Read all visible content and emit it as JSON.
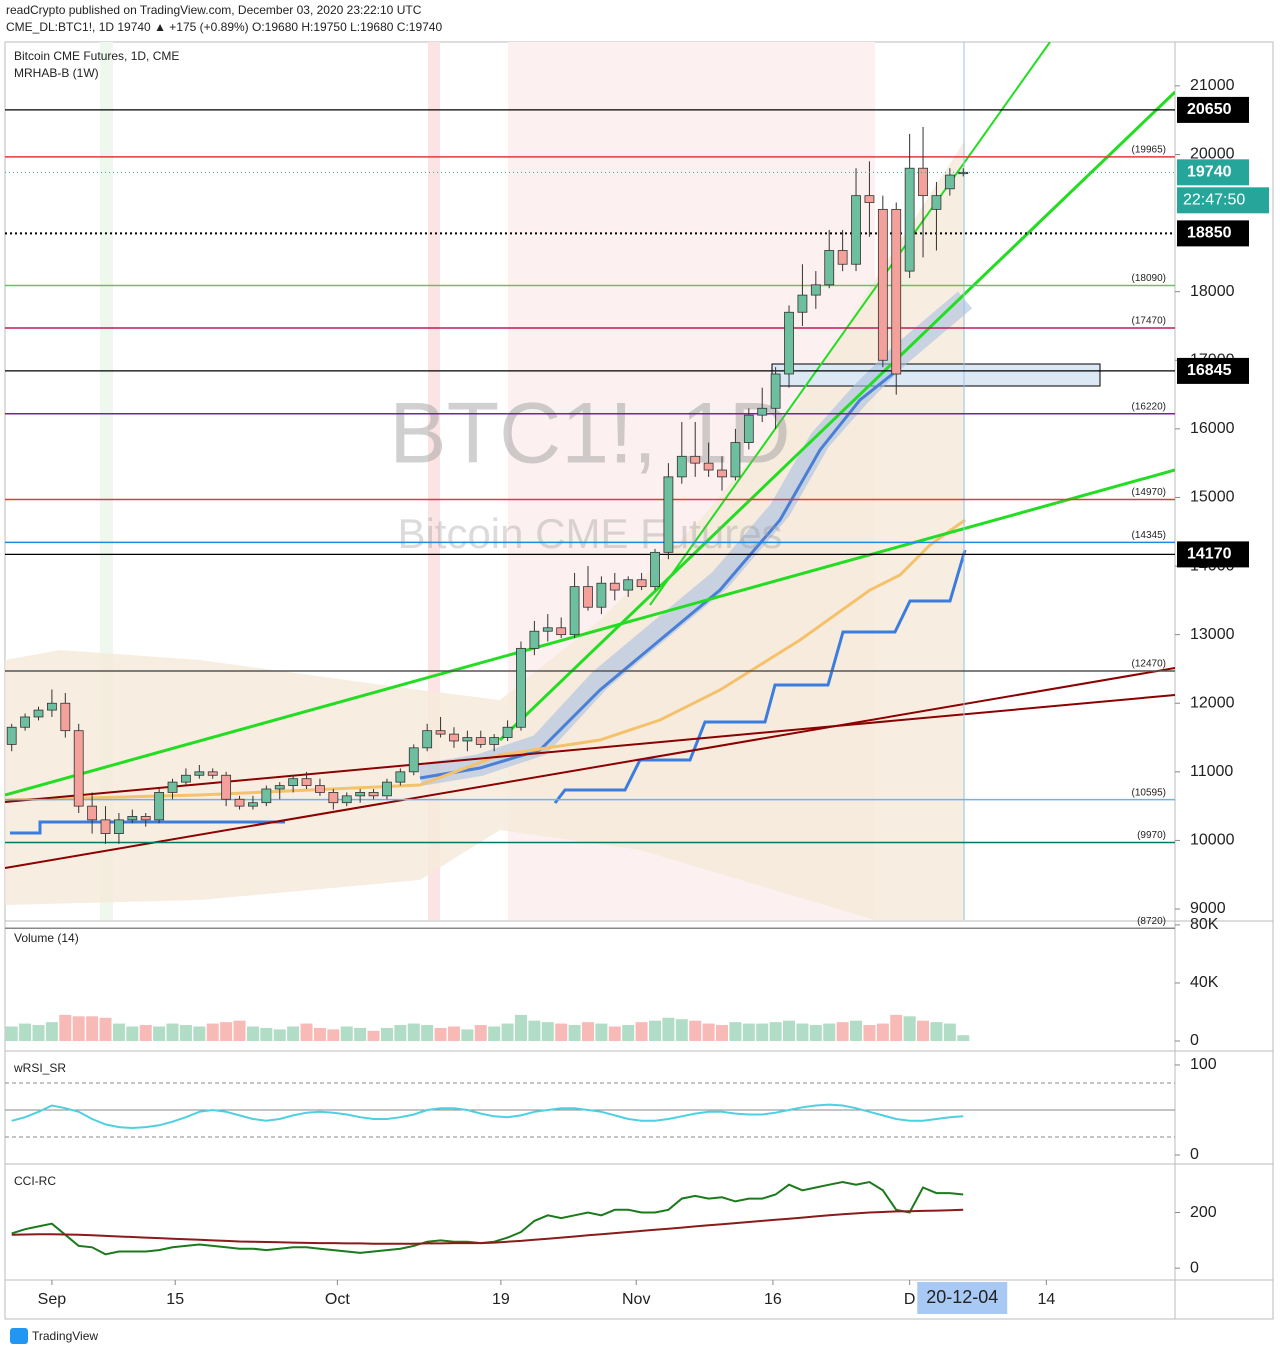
{
  "header": {
    "published": "readCrypto published on TradingView.com, December 03, 2020 23:22:10 UTC",
    "quote": "CME_DL:BTC1!, 1D  19740 ▲ +175 (+0.89%) O:19680 H:19750 L:19680 C:19740"
  },
  "footer": {
    "brand": "TradingView"
  },
  "chart_data": [
    {
      "type": "candlestick",
      "title": "Bitcoin CME Futures, 1D, CME",
      "subtitle": "MRHAB-B (1W)",
      "watermark": "BTC1!, 1D",
      "watermark_sub": "Bitcoin CME Futures",
      "ohlc": [
        [
          11400,
          11700,
          11300,
          11650
        ],
        [
          11650,
          11850,
          11600,
          11800
        ],
        [
          11800,
          11950,
          11750,
          11900
        ],
        [
          11900,
          12200,
          11800,
          12000
        ],
        [
          12000,
          12150,
          11500,
          11600
        ],
        [
          11600,
          11700,
          10400,
          10500
        ],
        [
          10500,
          10700,
          10100,
          10300
        ],
        [
          10300,
          10500,
          9950,
          10100
        ],
        [
          10100,
          10400,
          9950,
          10300
        ],
        [
          10300,
          10450,
          10250,
          10350
        ],
        [
          10350,
          10400,
          10200,
          10300
        ],
        [
          10300,
          10750,
          10250,
          10700
        ],
        [
          10700,
          10900,
          10600,
          10850
        ],
        [
          10850,
          11050,
          10800,
          10950
        ],
        [
          10950,
          11100,
          10900,
          11000
        ],
        [
          11000,
          11050,
          10900,
          10950
        ],
        [
          10950,
          11000,
          10500,
          10600
        ],
        [
          10600,
          10650,
          10450,
          10500
        ],
        [
          10500,
          10650,
          10450,
          10550
        ],
        [
          10550,
          10800,
          10500,
          10750
        ],
        [
          10750,
          10850,
          10600,
          10800
        ],
        [
          10800,
          10950,
          10700,
          10900
        ],
        [
          10900,
          11000,
          10750,
          10800
        ],
        [
          10800,
          10900,
          10650,
          10700
        ],
        [
          10700,
          10750,
          10450,
          10550
        ],
        [
          10550,
          10700,
          10500,
          10650
        ],
        [
          10650,
          10750,
          10550,
          10700
        ],
        [
          10700,
          10750,
          10600,
          10650
        ],
        [
          10650,
          10900,
          10600,
          10850
        ],
        [
          10850,
          11050,
          10800,
          11000
        ],
        [
          11000,
          11400,
          10950,
          11350
        ],
        [
          11350,
          11700,
          11300,
          11600
        ],
        [
          11600,
          11800,
          11500,
          11550
        ],
        [
          11550,
          11650,
          11350,
          11450
        ],
        [
          11450,
          11600,
          11300,
          11500
        ],
        [
          11500,
          11600,
          11350,
          11400
        ],
        [
          11400,
          11550,
          11300,
          11500
        ],
        [
          11500,
          11750,
          11450,
          11650
        ],
        [
          11650,
          12900,
          11600,
          12800
        ],
        [
          12800,
          13200,
          12700,
          13050
        ],
        [
          13050,
          13300,
          12900,
          13100
        ],
        [
          13100,
          13250,
          12950,
          13000
        ],
        [
          13000,
          13900,
          12950,
          13700
        ],
        [
          13700,
          14000,
          13350,
          13400
        ],
        [
          13400,
          13850,
          13300,
          13750
        ],
        [
          13750,
          13900,
          13500,
          13650
        ],
        [
          13650,
          13850,
          13550,
          13800
        ],
        [
          13800,
          13900,
          13650,
          13700
        ],
        [
          13700,
          14250,
          13650,
          14200
        ],
        [
          14200,
          15500,
          14100,
          15300
        ],
        [
          15300,
          16100,
          15200,
          15600
        ],
        [
          15600,
          16100,
          15300,
          15500
        ],
        [
          15500,
          15800,
          15300,
          15400
        ],
        [
          15400,
          15600,
          15100,
          15300
        ],
        [
          15300,
          16000,
          15250,
          15800
        ],
        [
          15800,
          16300,
          15700,
          16200
        ],
        [
          16200,
          16600,
          16100,
          16300
        ],
        [
          16300,
          16900,
          16000,
          16800
        ],
        [
          16800,
          17800,
          16600,
          17700
        ],
        [
          17700,
          18400,
          17500,
          17950
        ],
        [
          17950,
          18300,
          17750,
          18100
        ],
        [
          18100,
          18900,
          18050,
          18600
        ],
        [
          18600,
          18900,
          18300,
          18400
        ],
        [
          18400,
          19800,
          18300,
          19400
        ],
        [
          19400,
          19900,
          18800,
          19300
        ],
        [
          19200,
          19400,
          16900,
          17000
        ],
        [
          19200,
          19300,
          16500,
          16800
        ],
        [
          18300,
          20300,
          18200,
          19800
        ],
        [
          19800,
          20400,
          18500,
          19400
        ],
        [
          19200,
          19600,
          18600,
          19400
        ],
        [
          19500,
          19800,
          19400,
          19700
        ],
        [
          19720,
          19800,
          19680,
          19740
        ]
      ],
      "up_color": "#6dbfa0",
      "down_color": "#f4a19b",
      "xlim": [
        -0.5,
        86.8
      ],
      "ylim": [
        8840,
        21640
      ],
      "yticks": [
        9000,
        10000,
        11000,
        12000,
        13000,
        14000,
        15000,
        16000,
        17000,
        18000,
        20000,
        21000
      ],
      "xticks": [
        {
          "value": 3,
          "label": "Sep"
        },
        {
          "value": 12.2,
          "label": "15"
        },
        {
          "value": 24.3,
          "label": "Oct"
        },
        {
          "value": 36.5,
          "label": "19"
        },
        {
          "value": 46.6,
          "label": "Nov"
        },
        {
          "value": 56.8,
          "label": "16"
        },
        {
          "value": 67,
          "label": "D"
        },
        {
          "value": 77.2,
          "label": "14"
        }
      ],
      "cursor_label": "20-12-04",
      "levels": {
        "values": [
          19965,
          18090,
          17470,
          16220,
          14970,
          14345,
          12470,
          10595,
          9970,
          8720
        ],
        "value_labels": [
          "(19965)",
          "(18090)",
          "(17470)",
          "(16220)",
          "(14970)",
          "(14345)",
          "(12470)",
          "(10595)",
          "(9970)",
          "(8720)"
        ],
        "colors": [
          "#e53935",
          "#6abf69",
          "#c2185b",
          "#7b1fa2",
          "#e53935",
          "#1e88e5",
          "#555555",
          "#64b5f6",
          "#00796b",
          "#888888"
        ]
      },
      "marked_levels": {
        "values": [
          20650,
          18850,
          16845,
          14170
        ],
        "styles": [
          "solid",
          "dotted",
          "solid",
          "solid"
        ]
      },
      "last_price": 19740,
      "countdown": "22:47:50"
    },
    {
      "type": "bar",
      "title": "Volume (14)",
      "values": [
        10000,
        12000,
        11000,
        13000,
        18000,
        17000,
        17000,
        16000,
        12000,
        10000,
        11000,
        10000,
        12000,
        11000,
        10000,
        12000,
        13000,
        14000,
        10000,
        9000,
        8000,
        10000,
        12000,
        9000,
        8000,
        10000,
        9000,
        7000,
        9000,
        11000,
        12000,
        11000,
        9000,
        10000,
        8000,
        11000,
        10000,
        12000,
        18000,
        14000,
        13000,
        12000,
        11000,
        13000,
        12000,
        10000,
        11000,
        13000,
        14000,
        16000,
        15000,
        14000,
        12000,
        11000,
        13000,
        12000,
        12000,
        13000,
        14000,
        12000,
        11000,
        12000,
        13000,
        14000,
        11000,
        12000,
        18000,
        17000,
        14000,
        13000,
        12000,
        4000
      ],
      "ylim": [
        -6200,
        82000
      ],
      "yticks": [
        0,
        {
          "value": 40000,
          "label": "40K"
        },
        {
          "value": 80000,
          "label": "80K"
        }
      ]
    },
    {
      "type": "line",
      "title": "wRSI_SR",
      "color": "#4dd0e1",
      "values": [
        38,
        42,
        48,
        55,
        52,
        48,
        40,
        34,
        31,
        30,
        31,
        33,
        37,
        42,
        48,
        50,
        48,
        44,
        40,
        38,
        40,
        44,
        47,
        48,
        47,
        45,
        42,
        40,
        40,
        42,
        45,
        50,
        52,
        52,
        50,
        46,
        43,
        42,
        44,
        48,
        50,
        52,
        52,
        50,
        48,
        44,
        40,
        38,
        38,
        40,
        43,
        46,
        48,
        48,
        46,
        45,
        45,
        47,
        50,
        53,
        55,
        56,
        55,
        52,
        48,
        44,
        40,
        38,
        38,
        40,
        42,
        43
      ],
      "ylim": [
        -8.9,
        114.4
      ],
      "yticks": [
        0,
        100
      ],
      "guides": [
        80,
        50,
        20
      ]
    },
    {
      "type": "line",
      "title": "CCI-RC",
      "series": [
        {
          "color": "#1b7a1b",
          "values": [
            125,
            140,
            150,
            160,
            120,
            80,
            75,
            50,
            60,
            60,
            60,
            65,
            75,
            80,
            85,
            80,
            75,
            70,
            70,
            65,
            70,
            75,
            75,
            70,
            65,
            60,
            55,
            60,
            65,
            70,
            80,
            95,
            100,
            95,
            95,
            90,
            95,
            110,
            130,
            170,
            190,
            180,
            190,
            200,
            190,
            210,
            210,
            200,
            200,
            210,
            250,
            260,
            250,
            255,
            240,
            250,
            250,
            265,
            300,
            280,
            290,
            300,
            310,
            300,
            310,
            280,
            210,
            200,
            290,
            270,
            270,
            265
          ]
        },
        {
          "color": "#8b1a1a",
          "values": [
            120,
            121,
            122,
            122,
            121,
            120,
            118,
            116,
            114,
            112,
            110,
            108,
            106,
            104,
            102,
            100,
            98,
            96,
            95,
            94,
            93,
            92,
            91,
            90,
            90,
            89,
            89,
            88,
            88,
            88,
            88,
            89,
            89,
            90,
            90,
            90,
            92,
            95,
            98,
            102,
            106,
            110,
            114,
            118,
            122,
            126,
            130,
            134,
            138,
            142,
            146,
            150,
            154,
            158,
            162,
            166,
            170,
            174,
            178,
            182,
            186,
            190,
            194,
            197,
            200,
            202,
            204,
            205,
            206,
            207,
            208,
            210
          ]
        }
      ],
      "ylim": [
        -39,
        371
      ],
      "yticks": [
        0,
        200
      ]
    }
  ]
}
